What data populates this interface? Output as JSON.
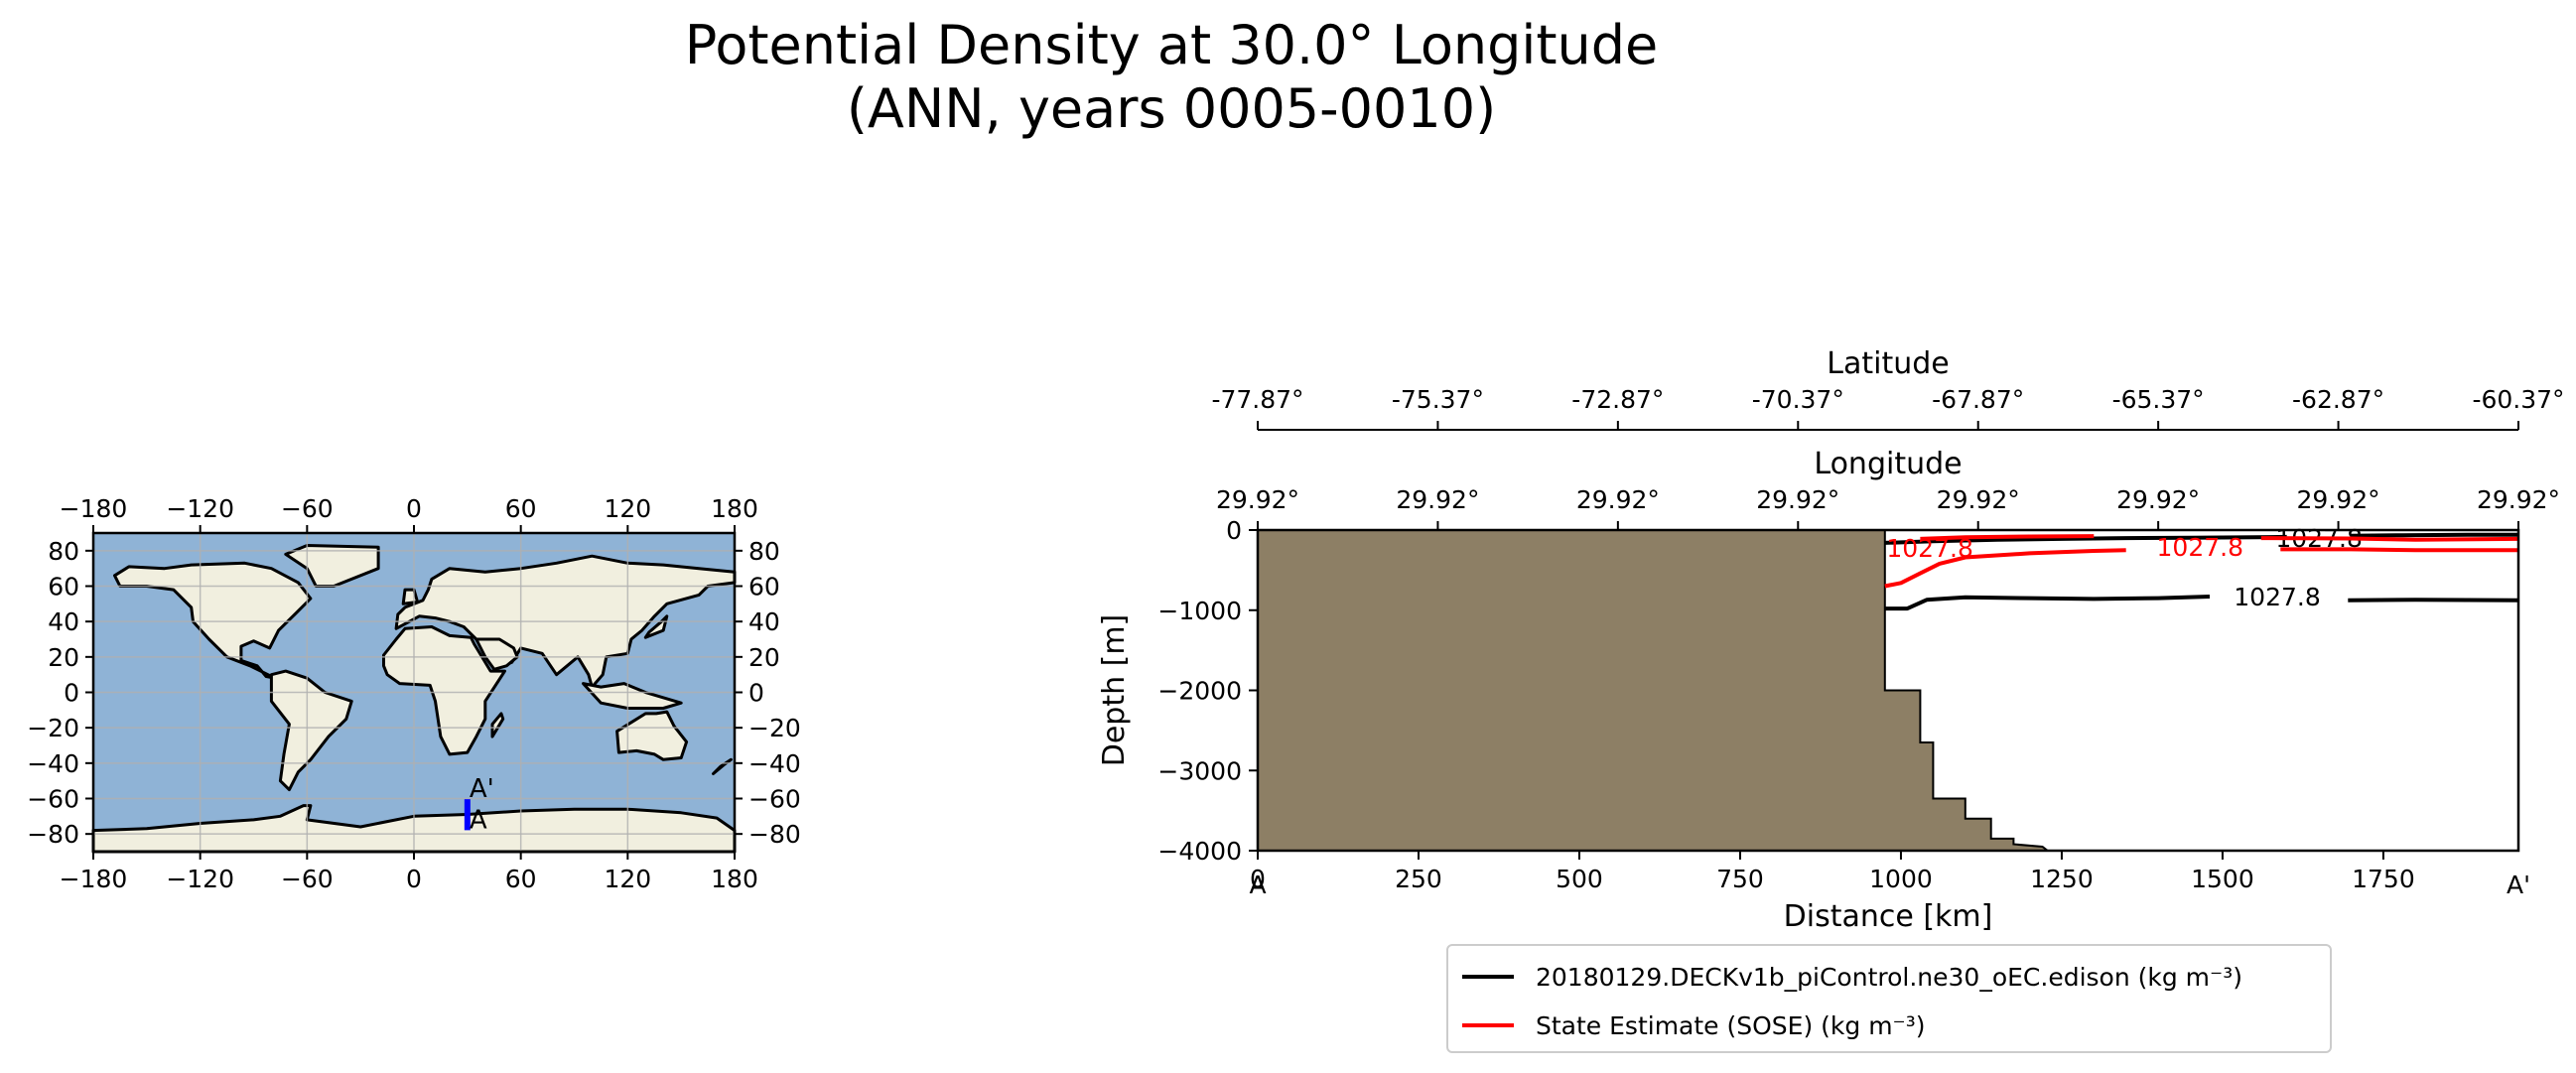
{
  "title": {
    "line1": "Potential Density at 30.0° Longitude",
    "line2": "(ANN, years 0005-0010)"
  },
  "colors": {
    "land": "#f1efdf",
    "ocean": "#8fb3d6",
    "bathymetry": "#8d7f65",
    "transect": "#0000ff",
    "model": "#000000",
    "observations": "#ff0000"
  },
  "map": {
    "x_ticks": [
      "−180",
      "−120",
      "−60",
      "0",
      "60",
      "120",
      "180"
    ],
    "y_ticks": [
      "80",
      "60",
      "40",
      "20",
      "0",
      "−20",
      "−40",
      "−60",
      "−80"
    ],
    "transect_start_label": "A",
    "transect_end_label": "A'",
    "transect": {
      "lon": 30.0,
      "lat_start": -77.87,
      "lat_end": -60.37
    }
  },
  "chart_data": {
    "type": "line",
    "xlabel": "Distance [km]",
    "ylabel": "Depth [m]",
    "xlim": [
      0,
      1960
    ],
    "ylim": [
      -4000,
      0
    ],
    "x_ticks": [
      "0",
      "250",
      "500",
      "750",
      "1000",
      "1250",
      "1500",
      "1750"
    ],
    "x_tick_values": [
      0,
      250,
      500,
      750,
      1000,
      1250,
      1500,
      1750
    ],
    "y_ticks": [
      "0",
      "−1000",
      "−2000",
      "−3000",
      "−4000"
    ],
    "y_tick_values": [
      0,
      -1000,
      -2000,
      -3000,
      -4000
    ],
    "start_label": "A",
    "end_label": "A'",
    "top_axes": [
      {
        "label": "Longitude",
        "ticks": [
          "29.92°",
          "29.92°",
          "29.92°",
          "29.92°",
          "29.92°",
          "29.92°",
          "29.92°",
          "29.92°"
        ]
      },
      {
        "label": "Latitude",
        "ticks": [
          "-77.87°",
          "-75.37°",
          "-72.87°",
          "-70.37°",
          "-67.87°",
          "-65.37°",
          "-62.87°",
          "-60.37°"
        ]
      }
    ],
    "bathymetry": {
      "x": [
        0,
        975,
        975,
        1030,
        1030,
        1050,
        1050,
        1100,
        1100,
        1140,
        1140,
        1175,
        1175,
        1220,
        1228,
        1228,
        0
      ],
      "y": [
        0,
        0,
        -2000,
        -2000,
        -2650,
        -2650,
        -3350,
        -3350,
        -3600,
        -3600,
        -3850,
        -3850,
        -3920,
        -3950,
        -4000,
        -4000,
        -4000
      ]
    },
    "contour_levels": [
      {
        "value": 1027.8,
        "label": "1027.8"
      }
    ],
    "series": [
      {
        "name": "20180129.DECKv1b_piControl.ne30_oEC.edison (kg m⁻³)",
        "color": "#000000",
        "lines": [
          {
            "x": [
              975,
              1010,
              1040,
              1100,
              1200,
              1300,
              1400,
              1480
            ],
            "y": [
              -980,
              -980,
              -870,
              -840,
              -850,
              -860,
              -850,
              -830
            ]
          },
          {
            "x": [
              1695,
              1800,
              1960
            ],
            "y": [
              -875,
              -870,
              -875
            ]
          },
          {
            "x": [
              975,
              1050,
              1150,
              1250,
              1350,
              1450,
              1550,
              1600
            ],
            "y": [
              -160,
              -140,
              -120,
              -110,
              -100,
              -95,
              -90,
              -85
            ]
          },
          {
            "x": [
              1700,
              1780,
              1880,
              1960
            ],
            "y": [
              -70,
              -65,
              -60,
              -60
            ]
          }
        ],
        "labels": [
          {
            "text": "1027.8",
            "x": 1585,
            "y": -830
          },
          {
            "text": "1027.8",
            "x": 1650,
            "y": -100
          }
        ]
      },
      {
        "name": "State Estimate (SOSE) (kg m⁻³)",
        "color": "#ff0000",
        "lines": [
          {
            "x": [
              975,
              1000,
              1030,
              1060,
              1100,
              1200,
              1300,
              1350
            ],
            "y": [
              -700,
              -660,
              -540,
              -420,
              -340,
              -290,
              -260,
              -250
            ]
          },
          {
            "x": [
              1590,
              1700,
              1800,
              1960
            ],
            "y": [
              -240,
              -240,
              -250,
              -250
            ]
          },
          {
            "x": [
              1030,
              1100,
              1200,
              1300
            ],
            "y": [
              -110,
              -90,
              -80,
              -75
            ]
          },
          {
            "x": [
              1560,
              1700,
              1800,
              1960
            ],
            "y": [
              -100,
              -105,
              -120,
              -110
            ]
          }
        ],
        "labels": [
          {
            "text": "1027.8",
            "x": 1045,
            "y": -220
          },
          {
            "text": "1027.8",
            "x": 1465,
            "y": -210
          }
        ]
      }
    ],
    "legend": "lower-center"
  }
}
